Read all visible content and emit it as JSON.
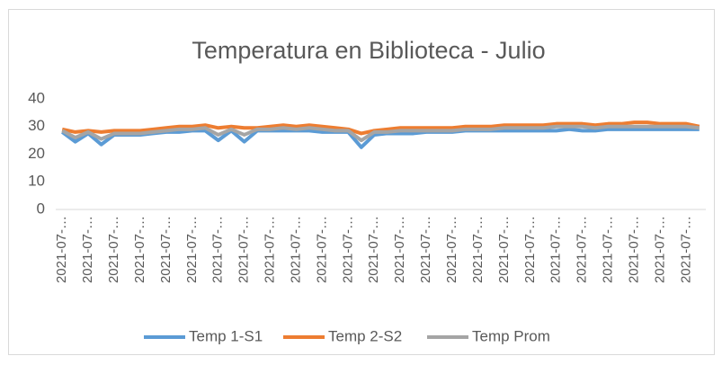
{
  "chart_data": {
    "type": "line",
    "title": "Temperatura  en Biblioteca - Julio",
    "categories": [
      "2021-07-…",
      null,
      "2021-07-…",
      null,
      "2021-07-…",
      null,
      "2021-07-…",
      null,
      "2021-07-…",
      null,
      "2021-07-…",
      null,
      "2021-07-…",
      null,
      "2021-07-…",
      null,
      "2021-07-…",
      null,
      "2021-07-…",
      null,
      "2021-07-…",
      null,
      "2021-07-…",
      null,
      "2021-07-…",
      null,
      "2021-07-…",
      null,
      "2021-07-…",
      null,
      "2021-07-…",
      null,
      "2021-07-…",
      null,
      "2021-07-…",
      null,
      "2021-07-…",
      null,
      "2021-07-…",
      null,
      "2021-07-…",
      null,
      "2021-07-…",
      null,
      "2021-07-…",
      null,
      "2021-07-…",
      null,
      "2021-07-…",
      null
    ],
    "series": [
      {
        "name": "Temp 1-S1",
        "color": "#5b9bd5",
        "values": [
          28,
          24.5,
          27.5,
          23.5,
          27,
          27,
          27,
          27.5,
          28,
          28,
          28.5,
          28.5,
          25,
          28.5,
          24.5,
          28.5,
          28.5,
          28.5,
          28.5,
          28.5,
          28,
          28,
          28,
          22.5,
          27,
          27.5,
          27.5,
          27.5,
          28,
          28,
          28,
          28.5,
          28.5,
          28.5,
          28.5,
          28.5,
          28.5,
          28.5,
          28.5,
          29,
          28.5,
          28.5,
          29,
          29,
          29,
          29,
          29,
          29,
          29,
          29
        ]
      },
      {
        "name": "Temp 2-S2",
        "color": "#ed7d31",
        "values": [
          29,
          28,
          28.5,
          28,
          28.5,
          28.5,
          28.5,
          29,
          29.5,
          30,
          30,
          30.5,
          29.5,
          30,
          29.5,
          29.5,
          30,
          30.5,
          30,
          30.5,
          30,
          29.5,
          29,
          27.5,
          28.5,
          29,
          29.5,
          29.5,
          29.5,
          29.5,
          29.5,
          30,
          30,
          30,
          30.5,
          30.5,
          30.5,
          30.5,
          31,
          31,
          31,
          30.5,
          31,
          31,
          31.5,
          31.5,
          31,
          31,
          31,
          30
        ]
      },
      {
        "name": "Temp Prom",
        "color": "#a5a5a5",
        "values": [
          28.5,
          26,
          28,
          25.5,
          27.5,
          27.5,
          27.5,
          28,
          28.5,
          29,
          29,
          29.5,
          27,
          29,
          27,
          29,
          29,
          29.5,
          29,
          29.5,
          29,
          28.5,
          28.5,
          25,
          28,
          28,
          28.5,
          28.5,
          28.5,
          28.5,
          28.5,
          29,
          29,
          29,
          29.5,
          29.5,
          29.5,
          29.5,
          30,
          30,
          30,
          29.5,
          30,
          30,
          30,
          30,
          30,
          30,
          30,
          29.5
        ]
      }
    ],
    "ylim": [
      0,
      40
    ],
    "yticks": [
      0,
      10,
      20,
      30,
      40
    ],
    "grid": false,
    "legend": "bottom"
  }
}
